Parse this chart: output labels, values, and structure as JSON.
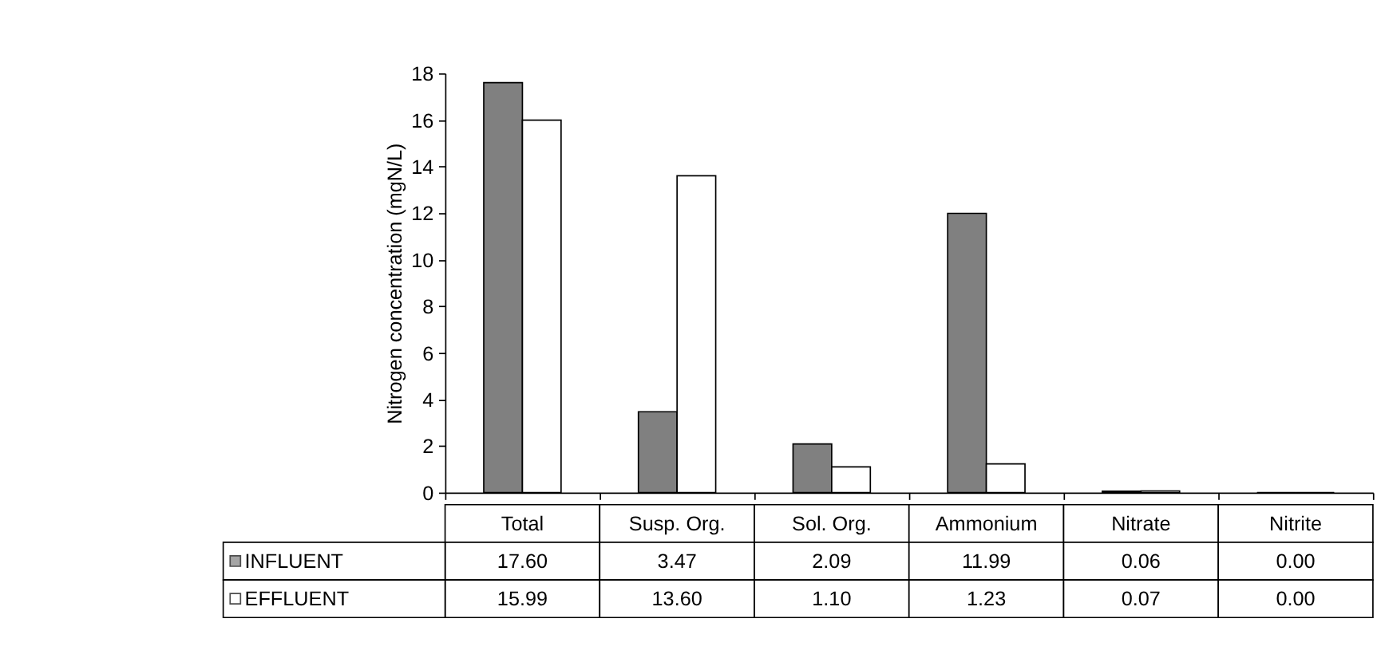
{
  "chart_data": {
    "type": "bar",
    "ylabel": "Nitrogen concentration (mgN/L)",
    "categories": [
      "Total",
      "Susp. Org.",
      "Sol. Org.",
      "Ammonium",
      "Nitrate",
      "Nitrite"
    ],
    "series": [
      {
        "name": "INFLUENT",
        "color": "#808080",
        "values": [
          17.6,
          3.47,
          2.09,
          11.99,
          0.06,
          0.0
        ],
        "value_labels": [
          "17.60",
          "3.47",
          "2.09",
          "11.99",
          "0.06",
          "0.00"
        ]
      },
      {
        "name": "EFFLUENT",
        "color": "#ffffff",
        "values": [
          15.99,
          13.6,
          1.1,
          1.23,
          0.07,
          0.0
        ],
        "value_labels": [
          "15.99",
          "13.60",
          "1.10",
          "1.23",
          "0.07",
          "0.00"
        ]
      }
    ],
    "ylim": [
      0,
      18
    ],
    "yticks": [
      0,
      2,
      4,
      6,
      8,
      10,
      12,
      14,
      16,
      18
    ],
    "grid": false,
    "legend": "bottom",
    "tick_labels": "y"
  }
}
